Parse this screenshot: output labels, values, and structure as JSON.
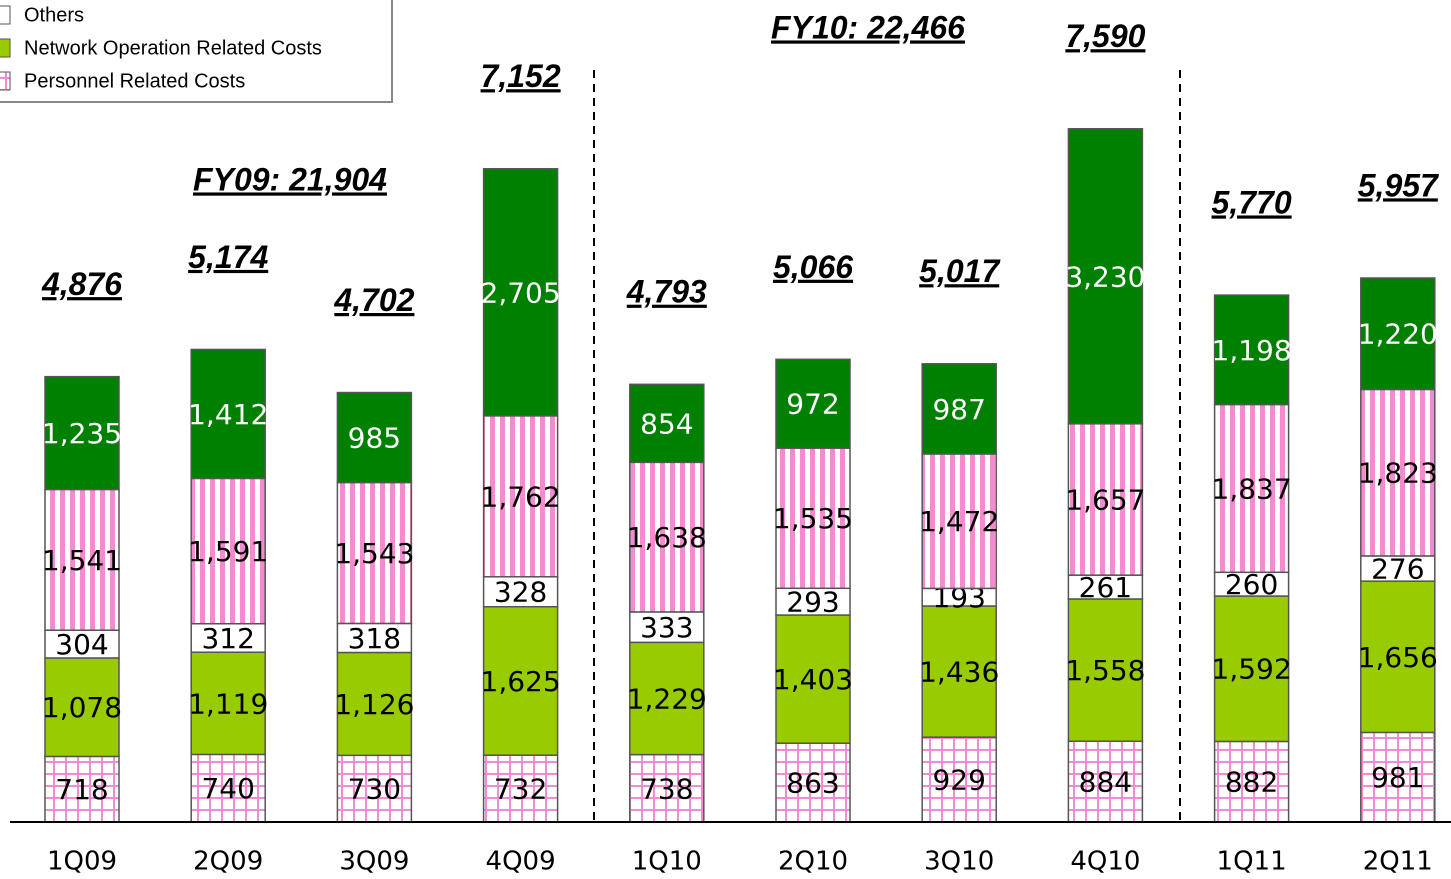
{
  "chart_data": {
    "type": "stacked_bar",
    "annotations": [
      "FY09: 21,904",
      "FY10: 22,466"
    ],
    "categories": [
      "1Q09",
      "2Q09",
      "3Q09",
      "4Q09",
      "1Q10",
      "2Q10",
      "3Q10",
      "4Q10",
      "1Q11",
      "2Q11"
    ],
    "series": [
      {
        "name": "Personnel Related Costs",
        "color": "#f08ccf",
        "pattern": "grid",
        "values": [
          718,
          740,
          730,
          732,
          738,
          863,
          929,
          884,
          882,
          981
        ],
        "value_labels": [
          "718",
          "740",
          "730",
          "732",
          "738",
          "863",
          "929",
          "884",
          "882",
          "981"
        ]
      },
      {
        "name": "Network Operation Related Costs",
        "color": "#99cc00",
        "pattern": "solid",
        "values": [
          1078,
          1119,
          1126,
          1625,
          1229,
          1403,
          1436,
          1558,
          1592,
          1656
        ],
        "value_labels": [
          "1,078",
          "1,119",
          "1,126",
          "1,625",
          "1,229",
          "1,403",
          "1,436",
          "1,558",
          "1,592",
          "1,656"
        ]
      },
      {
        "name": "Others",
        "color": "#ffffff",
        "pattern": "solid",
        "values": [
          304,
          312,
          318,
          328,
          333,
          293,
          193,
          261,
          260,
          276
        ],
        "value_labels": [
          "304",
          "312",
          "318",
          "328",
          "333",
          "293",
          "193",
          "261",
          "260",
          "276"
        ]
      },
      {
        "color": "#f08ccf",
        "pattern": "stripes",
        "values": [
          1541,
          1591,
          1543,
          1762,
          1638,
          1535,
          1472,
          1657,
          1837,
          1823
        ],
        "value_labels": [
          "1,541",
          "1,591",
          "1,543",
          "1,762",
          "1,638",
          "1,535",
          "1,472",
          "1,657",
          "1,837",
          "1,823"
        ]
      },
      {
        "color": "#008000",
        "pattern": "solid",
        "values": [
          1235,
          1412,
          985,
          2705,
          854,
          972,
          987,
          3230,
          1198,
          1220
        ],
        "value_labels": [
          "1,235",
          "1,412",
          "985",
          "2,705",
          "854",
          "972",
          "987",
          "3,230",
          "1,198",
          "1,220"
        ]
      }
    ],
    "totals": {
      "values": [
        4876,
        5174,
        4702,
        7152,
        4793,
        5066,
        5017,
        7590,
        5770,
        5957
      ],
      "value_labels": [
        "4,876",
        "5,174",
        "4,702",
        "7,152",
        "4,793",
        "5,066",
        "5,017",
        "7,590",
        "5,770",
        "5,957"
      ]
    },
    "ylim": [
      0,
      9000
    ]
  }
}
